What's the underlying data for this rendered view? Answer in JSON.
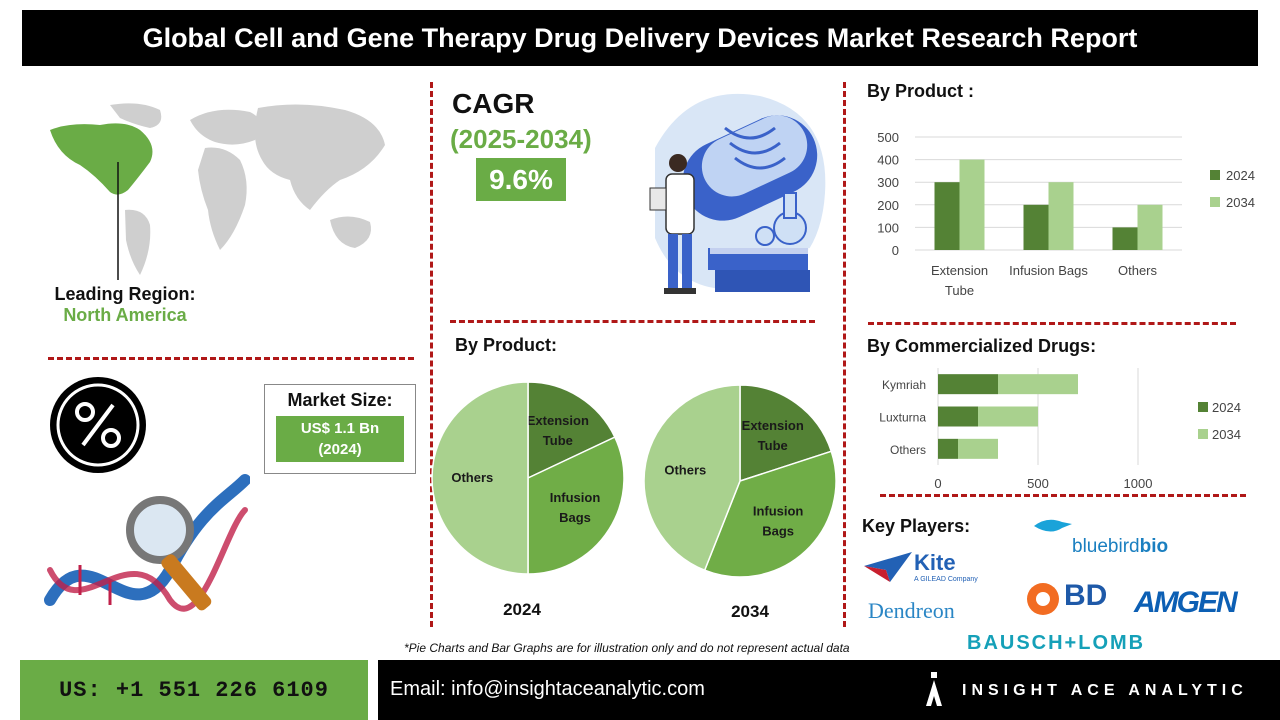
{
  "title": "Global Cell and Gene Therapy Drug Delivery Devices Market Research Report",
  "region": {
    "label": "Leading Region:",
    "value": "North America"
  },
  "cagr": {
    "label": "CAGR",
    "period": "(2025-2034)",
    "value": "9.6%"
  },
  "market_size": {
    "label": "Market Size:",
    "value_line1": "US$ 1.1 Bn",
    "value_line2": "(2024)"
  },
  "pies": {
    "heading": "By Product:",
    "charts": [
      {
        "year": "2024",
        "slices": [
          {
            "label_lines": [
              "Extension",
              "Tube"
            ],
            "value": 18,
            "color": "#548235"
          },
          {
            "label_lines": [
              "Infusion",
              "Bags"
            ],
            "value": 32,
            "color": "#70ad47"
          },
          {
            "label_lines": [
              "Others"
            ],
            "value": 50,
            "color": "#a9d18e"
          }
        ]
      },
      {
        "year": "2034",
        "slices": [
          {
            "label_lines": [
              "Extension",
              "Tube"
            ],
            "value": 20,
            "color": "#548235"
          },
          {
            "label_lines": [
              "Infusion",
              "Bags"
            ],
            "value": 36,
            "color": "#70ad47"
          },
          {
            "label_lines": [
              "Others"
            ],
            "value": 44,
            "color": "#a9d18e"
          }
        ]
      }
    ]
  },
  "chart_data": [
    {
      "type": "bar",
      "title": "By Product :",
      "categories": [
        [
          "Extension",
          "Tube"
        ],
        [
          "Infusion Bags"
        ],
        [
          "Others"
        ]
      ],
      "series": [
        {
          "name": "2024",
          "values": [
            300,
            200,
            100
          ],
          "color": "#548235"
        },
        {
          "name": "2034",
          "values": [
            400,
            300,
            200
          ],
          "color": "#a9d18e"
        }
      ],
      "ylim": [
        0,
        500
      ],
      "yticks": [
        0,
        100,
        200,
        300,
        400,
        500
      ],
      "grid": true,
      "legend": "right"
    },
    {
      "type": "bar",
      "orientation": "horizontal",
      "stacked": true,
      "title": "By Commercialized Drugs:",
      "categories": [
        "Kymriah",
        "Luxturna",
        "Others"
      ],
      "series": [
        {
          "name": "2024",
          "values": [
            300,
            200,
            100
          ],
          "color": "#548235"
        },
        {
          "name": "2034",
          "values": [
            400,
            300,
            200
          ],
          "color": "#a9d18e"
        }
      ],
      "xlim": [
        0,
        1300
      ],
      "xticks": [
        0,
        500,
        1000
      ],
      "grid": true,
      "legend": "right"
    },
    {
      "type": "pie",
      "title": "By Product:",
      "subtitle": "2024",
      "labels": [
        "Extension Tube",
        "Infusion Bags",
        "Others"
      ],
      "values": [
        18,
        32,
        50
      ]
    },
    {
      "type": "pie",
      "title": "By Product:",
      "subtitle": "2034",
      "labels": [
        "Extension Tube",
        "Infusion Bags",
        "Others"
      ],
      "values": [
        20,
        36,
        44
      ]
    }
  ],
  "key_players": {
    "heading": "Key Players:",
    "kite": "Kite",
    "kite_sub": "A GILEAD Company",
    "bluebird": "bluebird",
    "bluebird_suffix": "bio",
    "dendreon": "Dendreon",
    "bd": "BD",
    "amgen": "AMGEN",
    "bausch": "BAUSCH+LOMB"
  },
  "footnote": "*Pie Charts and Bar Graphs are for illustration only and do not represent actual data",
  "footer": {
    "phone": "US: +1 551 226 6109",
    "email": "Email: info@insightaceanalytic.com",
    "brand": "INSIGHT ACE ANALYTIC"
  }
}
